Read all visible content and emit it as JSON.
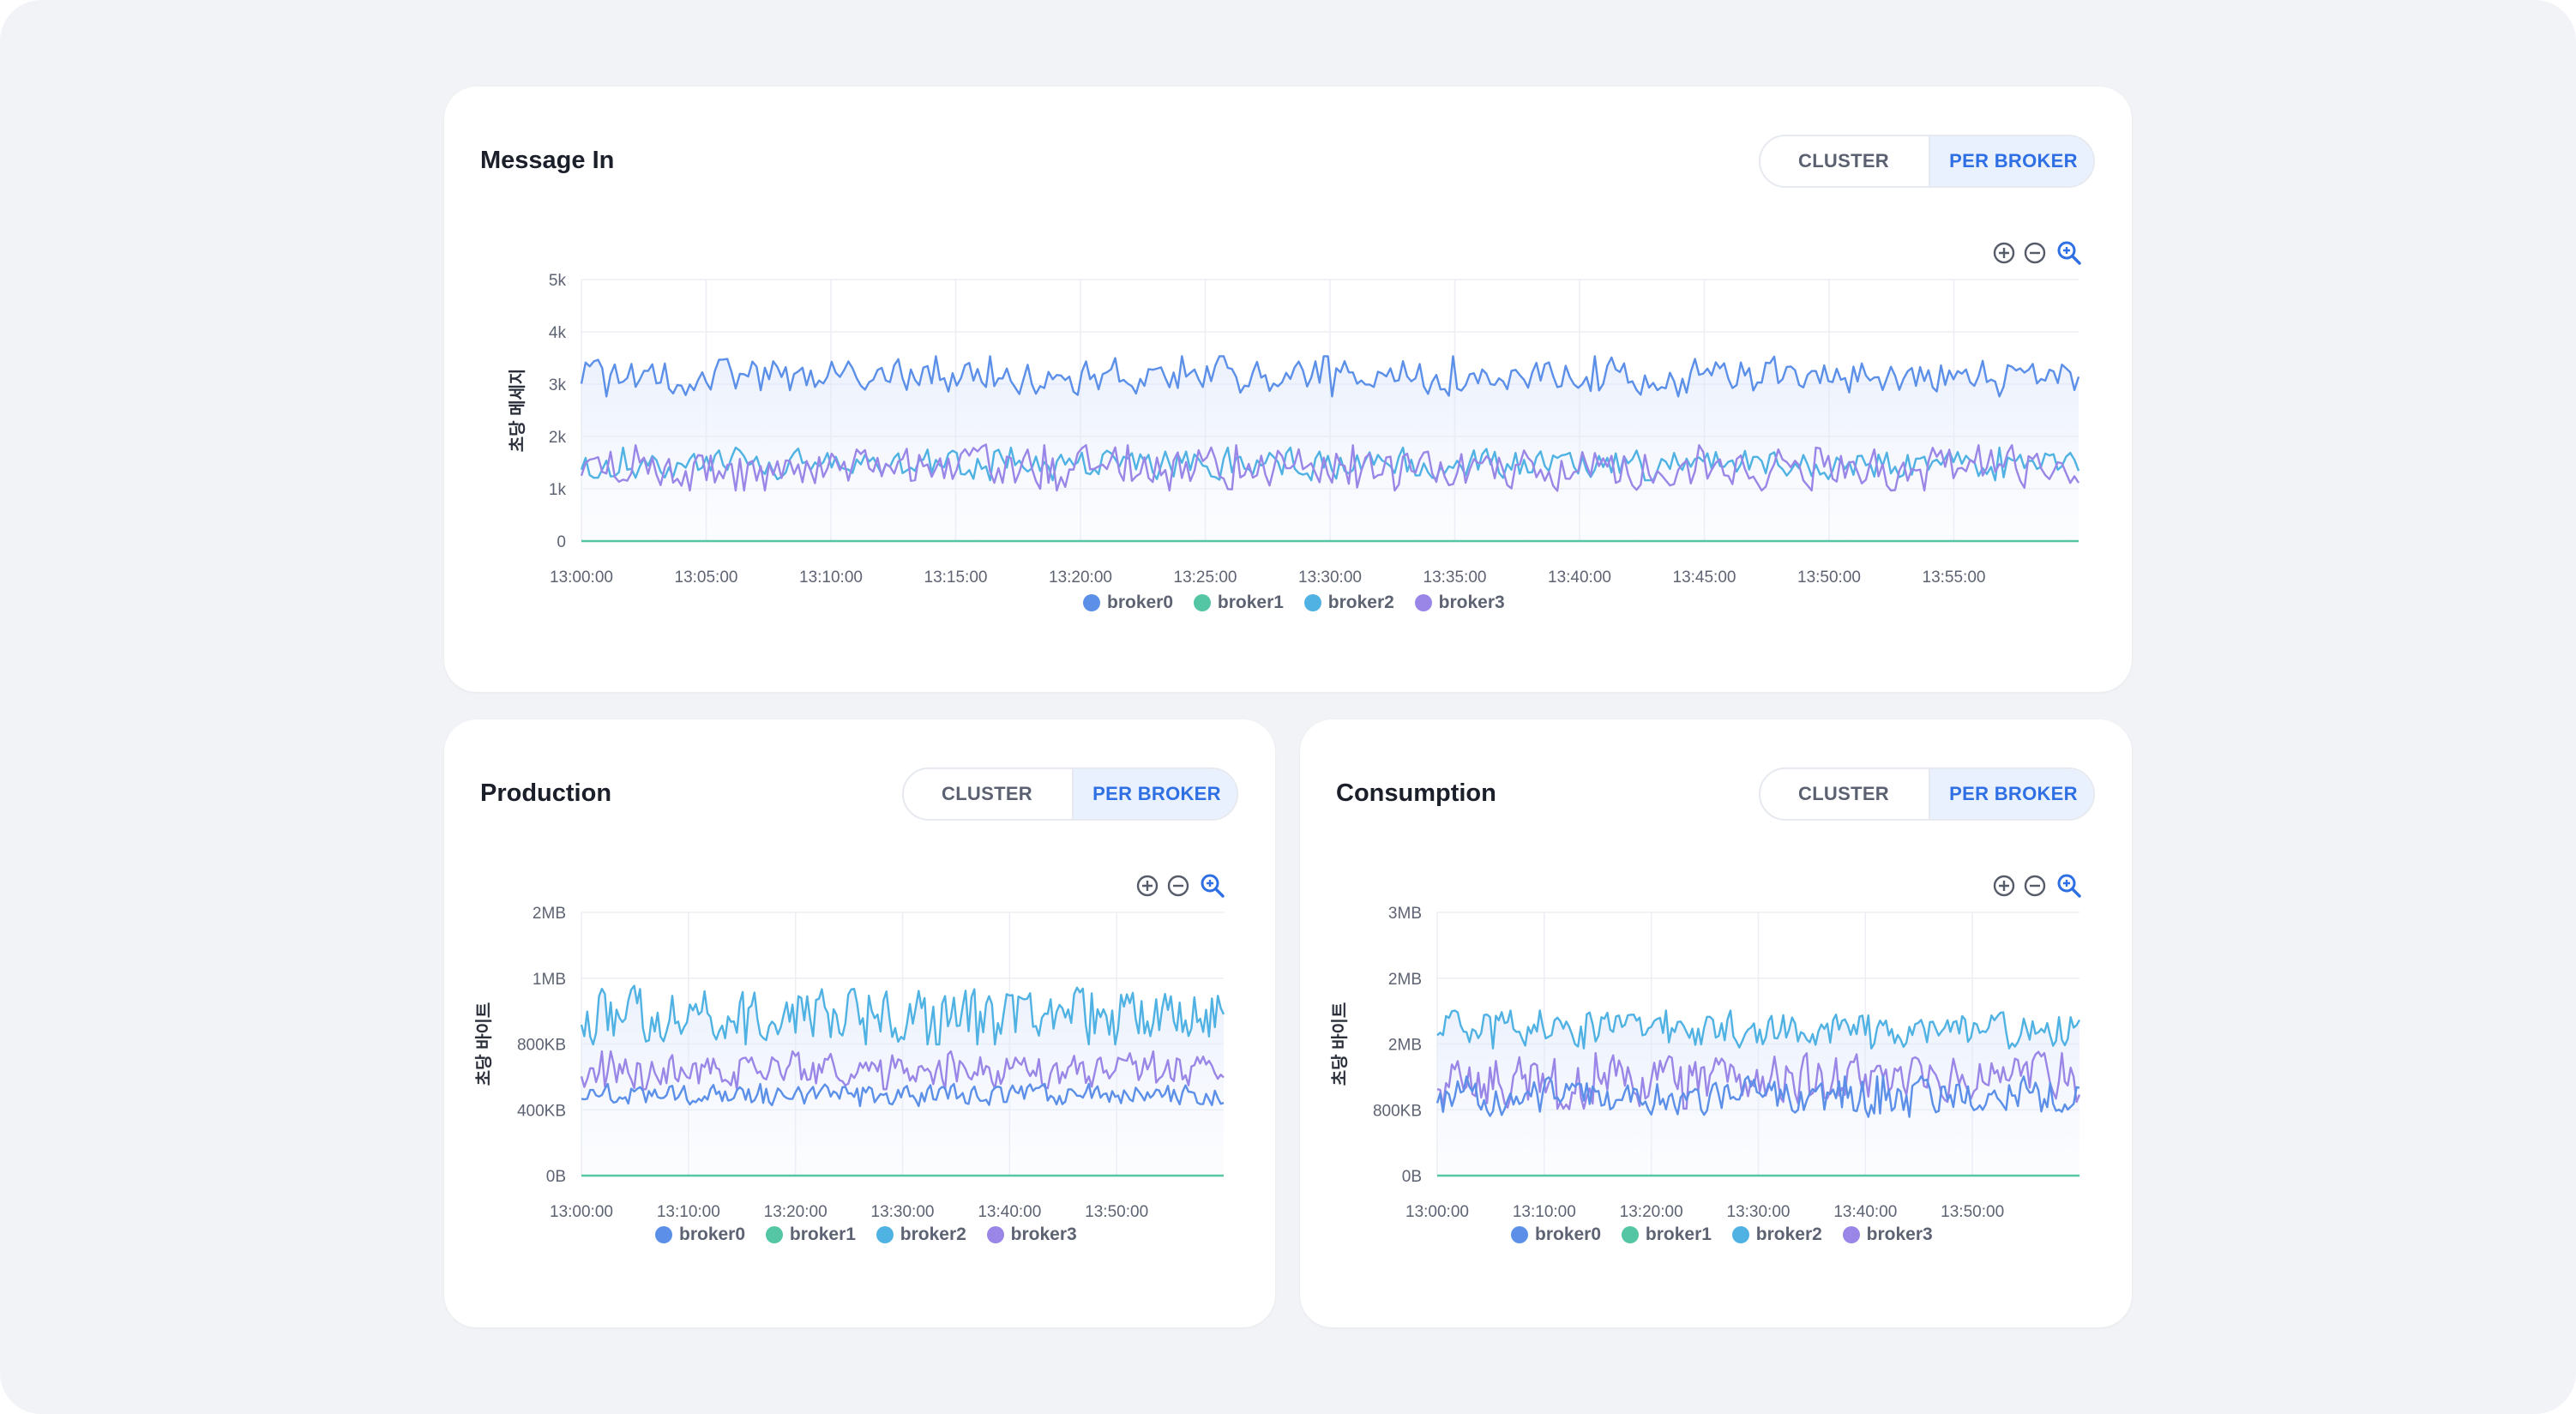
{
  "colors": {
    "broker0": "#5b8fe8",
    "broker1": "#55c6a4",
    "broker2": "#4fb2e3",
    "broker3": "#9a86e6",
    "accent": "#2f6fe4"
  },
  "icons": {
    "zoom_in": "zoom-in-icon",
    "zoom_out": "zoom-out-icon",
    "zoom_search": "magnifier-zoom-icon"
  },
  "panels": [
    {
      "title": "Message In",
      "toggle": {
        "cluster": "CLUSTER",
        "per_broker": "PER BROKER",
        "selected": "PER BROKER"
      },
      "legend": [
        "broker0",
        "broker1",
        "broker2",
        "broker3"
      ]
    },
    {
      "title": "Production",
      "toggle": {
        "cluster": "CLUSTER",
        "per_broker": "PER BROKER",
        "selected": "PER BROKER"
      },
      "legend": [
        "broker0",
        "broker1",
        "broker2",
        "broker3"
      ]
    },
    {
      "title": "Consumption",
      "toggle": {
        "cluster": "CLUSTER",
        "per_broker": "PER BROKER",
        "selected": "PER BROKER"
      },
      "legend": [
        "broker0",
        "broker1",
        "broker2",
        "broker3"
      ]
    }
  ],
  "chart_data": [
    {
      "type": "line",
      "title": "Message In",
      "ylabel": "초당 메세지",
      "xlabel": "",
      "y_tick_labels": [
        "0",
        "1k",
        "2k",
        "3k",
        "4k",
        "5k"
      ],
      "ylim": [
        0,
        5000
      ],
      "x_tick_labels": [
        "13:00:00",
        "13:05:00",
        "13:10:00",
        "13:15:00",
        "13:20:00",
        "13:25:00",
        "13:30:00",
        "13:35:00",
        "13:40:00",
        "13:45:00",
        "13:50:00",
        "13:55:00"
      ],
      "x_range": [
        "13:00:00",
        "13:59:50"
      ],
      "grid": true,
      "legend_position": "bottom",
      "series": [
        {
          "name": "broker0",
          "mean": 3100,
          "range": [
            2750,
            3550
          ]
        },
        {
          "name": "broker1",
          "mean": 0,
          "range": [
            0,
            0
          ]
        },
        {
          "name": "broker2",
          "mean": 1450,
          "range": [
            1150,
            1800
          ]
        },
        {
          "name": "broker3",
          "mean": 1400,
          "range": [
            950,
            1850
          ]
        }
      ]
    },
    {
      "type": "line",
      "title": "Production",
      "ylabel": "초당 바이트",
      "xlabel": "",
      "y_tick_labels": [
        "0B",
        "400KB",
        "800KB",
        "1MB",
        "2MB"
      ],
      "x_tick_labels": [
        "13:00:00",
        "13:10:00",
        "13:20:00",
        "13:30:00",
        "13:40:00",
        "13:50:00"
      ],
      "x_range": [
        "13:00:00",
        "13:59:50"
      ],
      "grid": true,
      "legend_position": "bottom",
      "series": [
        {
          "name": "broker0",
          "mean_bytes": 480000,
          "range_bytes": [
            420000,
            560000
          ]
        },
        {
          "name": "broker1",
          "mean_bytes": 0,
          "range_bytes": [
            0,
            0
          ]
        },
        {
          "name": "broker2",
          "mean_bytes": 860000,
          "range_bytes": [
            790000,
            980000
          ]
        },
        {
          "name": "broker3",
          "mean_bytes": 630000,
          "range_bytes": [
            520000,
            760000
          ]
        }
      ]
    },
    {
      "type": "line",
      "title": "Consumption",
      "ylabel": "초당 바이트",
      "xlabel": "",
      "y_tick_labels": [
        "0B",
        "800KB",
        "2MB",
        "2MB",
        "3MB"
      ],
      "x_tick_labels": [
        "13:00:00",
        "13:10:00",
        "13:20:00",
        "13:30:00",
        "13:40:00",
        "13:50:00"
      ],
      "x_range": [
        "13:00:00",
        "13:59:50"
      ],
      "grid": true,
      "legend_position": "bottom",
      "series": [
        {
          "name": "broker0",
          "level": 0.29,
          "band": [
            0.22,
            0.38
          ]
        },
        {
          "name": "broker1",
          "level": 0.0,
          "band": [
            0,
            0
          ]
        },
        {
          "name": "broker2",
          "level": 0.54,
          "band": [
            0.48,
            0.63
          ]
        },
        {
          "name": "broker3",
          "level": 0.36,
          "band": [
            0.25,
            0.47
          ]
        }
      ]
    }
  ]
}
